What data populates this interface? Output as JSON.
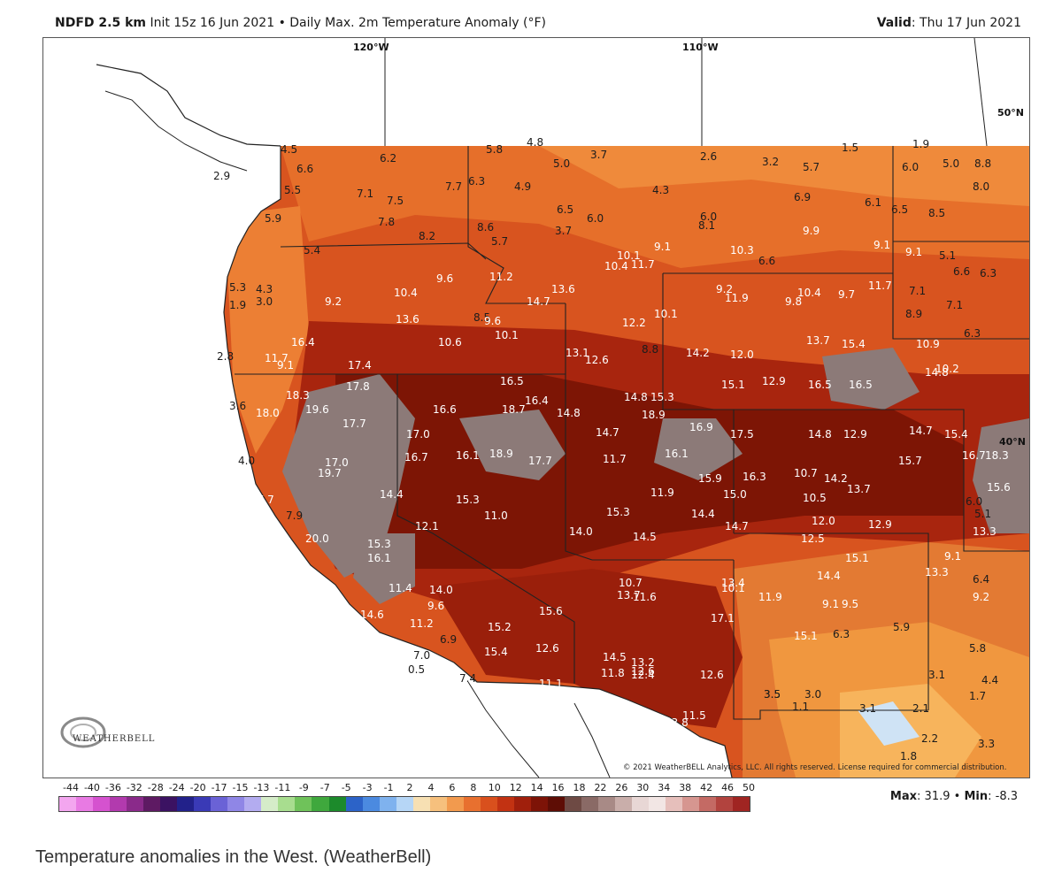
{
  "header": {
    "model": "NDFD 2.5 km",
    "init": "Init 15z 16 Jun 2021",
    "separator": "•",
    "product": "Daily Max. 2m Temperature Anomaly (°F)",
    "valid_label": "Valid",
    "valid_value": ": Thu 17 Jun 2021"
  },
  "graticule": {
    "lon_120": "120°W",
    "lon_110": "110°W",
    "lat_50": "50°N",
    "lat_40": "40°N"
  },
  "colors": {
    "ocean": "#ffffff",
    "land_outside": "#ffffff",
    "base_anomaly": "#d8541f",
    "hot": "#a8250e",
    "hotter": "#7d1505",
    "extreme": "#8c7a78",
    "warm": "#ef8a3b",
    "mild": "#f7b45c",
    "border": "#222222"
  },
  "anomaly_values": [
    {
      "v": "4.5"
    },
    {
      "v": "6.6"
    },
    {
      "v": "6.2"
    },
    {
      "v": "5.8"
    },
    {
      "v": "4.8"
    },
    {
      "v": "3.7"
    },
    {
      "v": "5.0"
    },
    {
      "v": "2.6"
    },
    {
      "v": "3.2"
    },
    {
      "v": "5.7"
    },
    {
      "v": "1.5"
    },
    {
      "v": "1.9"
    },
    {
      "v": "6.0"
    },
    {
      "v": "5.0"
    },
    {
      "v": "8.8"
    },
    {
      "v": "8.0"
    },
    {
      "v": "2.9"
    },
    {
      "v": "5.5"
    },
    {
      "v": "7.1"
    },
    {
      "v": "7.5"
    },
    {
      "v": "7.7"
    },
    {
      "v": "6.3"
    },
    {
      "v": "4.9"
    },
    {
      "v": "4.3"
    },
    {
      "v": "6.9"
    },
    {
      "v": "6.1"
    },
    {
      "v": "6.5"
    },
    {
      "v": "8.5"
    },
    {
      "v": "5.9"
    },
    {
      "v": "7.8"
    },
    {
      "v": "6.5"
    },
    {
      "v": "6.0"
    },
    {
      "v": "6.0"
    },
    {
      "v": "8.1"
    },
    {
      "v": "8.2"
    },
    {
      "v": "8.6"
    },
    {
      "v": "3.7"
    },
    {
      "v": "5.7"
    },
    {
      "v": "9.9"
    },
    {
      "v": "9.1"
    },
    {
      "v": "9.1"
    },
    {
      "v": "5.1"
    },
    {
      "v": "5.4"
    },
    {
      "v": "9.1"
    },
    {
      "v": "10.1"
    },
    {
      "v": "10.3"
    },
    {
      "v": "6.6"
    },
    {
      "v": "6.6"
    },
    {
      "v": "6.3"
    },
    {
      "v": "10.4"
    },
    {
      "v": "11.7"
    },
    {
      "v": "9.6"
    },
    {
      "v": "11.2"
    },
    {
      "v": "5.3"
    },
    {
      "v": "4.3"
    },
    {
      "v": "3.0"
    },
    {
      "v": "13.6"
    },
    {
      "v": "10.4"
    },
    {
      "v": "9.2"
    },
    {
      "v": "11.9"
    },
    {
      "v": "10.4"
    },
    {
      "v": "9.8"
    },
    {
      "v": "9.7"
    },
    {
      "v": "11.7"
    },
    {
      "v": "7.1"
    },
    {
      "v": "14.7"
    },
    {
      "v": "9.2"
    },
    {
      "v": "1.9"
    },
    {
      "v": "7.1"
    },
    {
      "v": "8.9"
    },
    {
      "v": "13.6"
    },
    {
      "v": "8.5"
    },
    {
      "v": "9.6"
    },
    {
      "v": "12.2"
    },
    {
      "v": "10.1"
    },
    {
      "v": "6.3"
    },
    {
      "v": "10.1"
    },
    {
      "v": "16.4"
    },
    {
      "v": "10.6"
    },
    {
      "v": "13.7"
    },
    {
      "v": "15.4"
    },
    {
      "v": "10.9"
    },
    {
      "v": "2.8"
    },
    {
      "v": "11.7"
    },
    {
      "v": "13.1"
    },
    {
      "v": "12.6"
    },
    {
      "v": "8.8"
    },
    {
      "v": "14.2"
    },
    {
      "v": "12.0"
    },
    {
      "v": "10.2"
    },
    {
      "v": "9.1"
    },
    {
      "v": "17.4"
    },
    {
      "v": "16.5"
    },
    {
      "v": "14.8"
    },
    {
      "v": "16.5"
    },
    {
      "v": "17.8"
    },
    {
      "v": "15.1"
    },
    {
      "v": "12.9"
    },
    {
      "v": "16.5"
    },
    {
      "v": "18.3"
    },
    {
      "v": "16.4"
    },
    {
      "v": "14.8"
    },
    {
      "v": "15.3"
    },
    {
      "v": "3.6"
    },
    {
      "v": "18.0"
    },
    {
      "v": "19.6"
    },
    {
      "v": "16.6"
    },
    {
      "v": "18.7"
    },
    {
      "v": "14.8"
    },
    {
      "v": "17.7"
    },
    {
      "v": "18.9"
    },
    {
      "v": "16.9"
    },
    {
      "v": "17.0"
    },
    {
      "v": "14.7"
    },
    {
      "v": "17.5"
    },
    {
      "v": "14.8"
    },
    {
      "v": "12.9"
    },
    {
      "v": "14.7"
    },
    {
      "v": "15.4"
    },
    {
      "v": "16.7"
    },
    {
      "v": "16.1"
    },
    {
      "v": "18.9"
    },
    {
      "v": "17.7"
    },
    {
      "v": "11.7"
    },
    {
      "v": "16.1"
    },
    {
      "v": "15.7"
    },
    {
      "v": "16.7"
    },
    {
      "v": "18.3"
    },
    {
      "v": "4.0"
    },
    {
      "v": "17.0"
    },
    {
      "v": "19.7"
    },
    {
      "v": "15.9"
    },
    {
      "v": "16.3"
    },
    {
      "v": "10.7"
    },
    {
      "v": "14.2"
    },
    {
      "v": "13.7"
    },
    {
      "v": "15.6"
    },
    {
      "v": "14.4"
    },
    {
      "v": "11.9"
    },
    {
      "v": "15.0"
    },
    {
      "v": "10.5"
    },
    {
      "v": "6.0"
    },
    {
      "v": "17.7"
    },
    {
      "v": "15.3"
    },
    {
      "v": "11.0"
    },
    {
      "v": "15.3"
    },
    {
      "v": "14.4"
    },
    {
      "v": "5.1"
    },
    {
      "v": "7.9"
    },
    {
      "v": "12.1"
    },
    {
      "v": "14.7"
    },
    {
      "v": "12.0"
    },
    {
      "v": "12.9"
    },
    {
      "v": "13.3"
    },
    {
      "v": "20.0"
    },
    {
      "v": "15.3"
    },
    {
      "v": "14.0"
    },
    {
      "v": "14.5"
    },
    {
      "v": "12.5"
    },
    {
      "v": "16.1"
    },
    {
      "v": "15.1"
    },
    {
      "v": "9.1"
    },
    {
      "v": "13.3"
    },
    {
      "v": "10.7"
    },
    {
      "v": "13.4"
    },
    {
      "v": "14.4"
    },
    {
      "v": "6.4"
    },
    {
      "v": "11.4"
    },
    {
      "v": "14.0"
    },
    {
      "v": "13.7"
    },
    {
      "v": "11.6"
    },
    {
      "v": "10.1"
    },
    {
      "v": "11.9"
    },
    {
      "v": "9.1"
    },
    {
      "v": "9.5"
    },
    {
      "v": "9.2"
    },
    {
      "v": "9.6"
    },
    {
      "v": "15.6"
    },
    {
      "v": "14.6"
    },
    {
      "v": "17.1"
    },
    {
      "v": "11.2"
    },
    {
      "v": "15.2"
    },
    {
      "v": "15.1"
    },
    {
      "v": "6.3"
    },
    {
      "v": "5.9"
    },
    {
      "v": "6.9"
    },
    {
      "v": "12.6"
    },
    {
      "v": "14.5"
    },
    {
      "v": "12.6"
    },
    {
      "v": "15.4"
    },
    {
      "v": "7.0"
    },
    {
      "v": "13.2"
    },
    {
      "v": "5.8"
    },
    {
      "v": "0.5"
    },
    {
      "v": "11.8"
    },
    {
      "v": "12.4"
    },
    {
      "v": "12.6"
    },
    {
      "v": "3.5"
    },
    {
      "v": "3.1"
    },
    {
      "v": "4.4"
    },
    {
      "v": "7.4"
    },
    {
      "v": "11.1"
    },
    {
      "v": "3.5"
    },
    {
      "v": "3.0"
    },
    {
      "v": "1.7"
    },
    {
      "v": "11.5"
    },
    {
      "v": "13.8"
    },
    {
      "v": "1.1"
    },
    {
      "v": "3.1"
    },
    {
      "v": "2.1"
    },
    {
      "v": "2.2"
    },
    {
      "v": "3.3"
    },
    {
      "v": "1.8"
    }
  ],
  "copyright": "© 2021 WeatherBELL Analytics, LLC. All rights reserved. License required for commercial distribution.",
  "logo_text": "WEATHERBELL",
  "scale": {
    "labels": [
      "-44",
      "-40",
      "-36",
      "-32",
      "-28",
      "-24",
      "-20",
      "-17",
      "-15",
      "-13",
      "-11",
      "-9",
      "-7",
      "-5",
      "-3",
      "-1",
      "2",
      "4",
      "6",
      "8",
      "10",
      "12",
      "14",
      "16",
      "18",
      "22",
      "26",
      "30",
      "34",
      "38",
      "42",
      "46",
      "50"
    ],
    "colors": [
      "#f3a6ef",
      "#e87ae3",
      "#d552cf",
      "#b23aae",
      "#8a2a8a",
      "#5e1a63",
      "#3b1262",
      "#22218a",
      "#3a3ab6",
      "#6a62d6",
      "#8f86e6",
      "#b3acf0",
      "#d5ecc9",
      "#a8dd8f",
      "#6fc25a",
      "#3fa83d",
      "#1c8a2b",
      "#2c63c8",
      "#4b8ae0",
      "#7fb2ee",
      "#b6d6f6",
      "#f7e0b3",
      "#f6c07d",
      "#f29a4e",
      "#e8702f",
      "#d9501d",
      "#c23212",
      "#a01f0c",
      "#7d1307",
      "#5e0d05",
      "#6e4a44",
      "#8a6a66",
      "#a88a86",
      "#c9aeaa",
      "#e8d7d5",
      "#f2e6e4",
      "#e6bfbb",
      "#d69690",
      "#c46a64",
      "#b2433e",
      "#a02522"
    ]
  },
  "maxmin": {
    "max_label": "Max",
    "max_value": ": 31.9",
    "sep": "•",
    "min_label": "Min",
    "min_value": ": -8.3"
  },
  "caption": "Temperature anomalies in the West. (WeatherBell)"
}
